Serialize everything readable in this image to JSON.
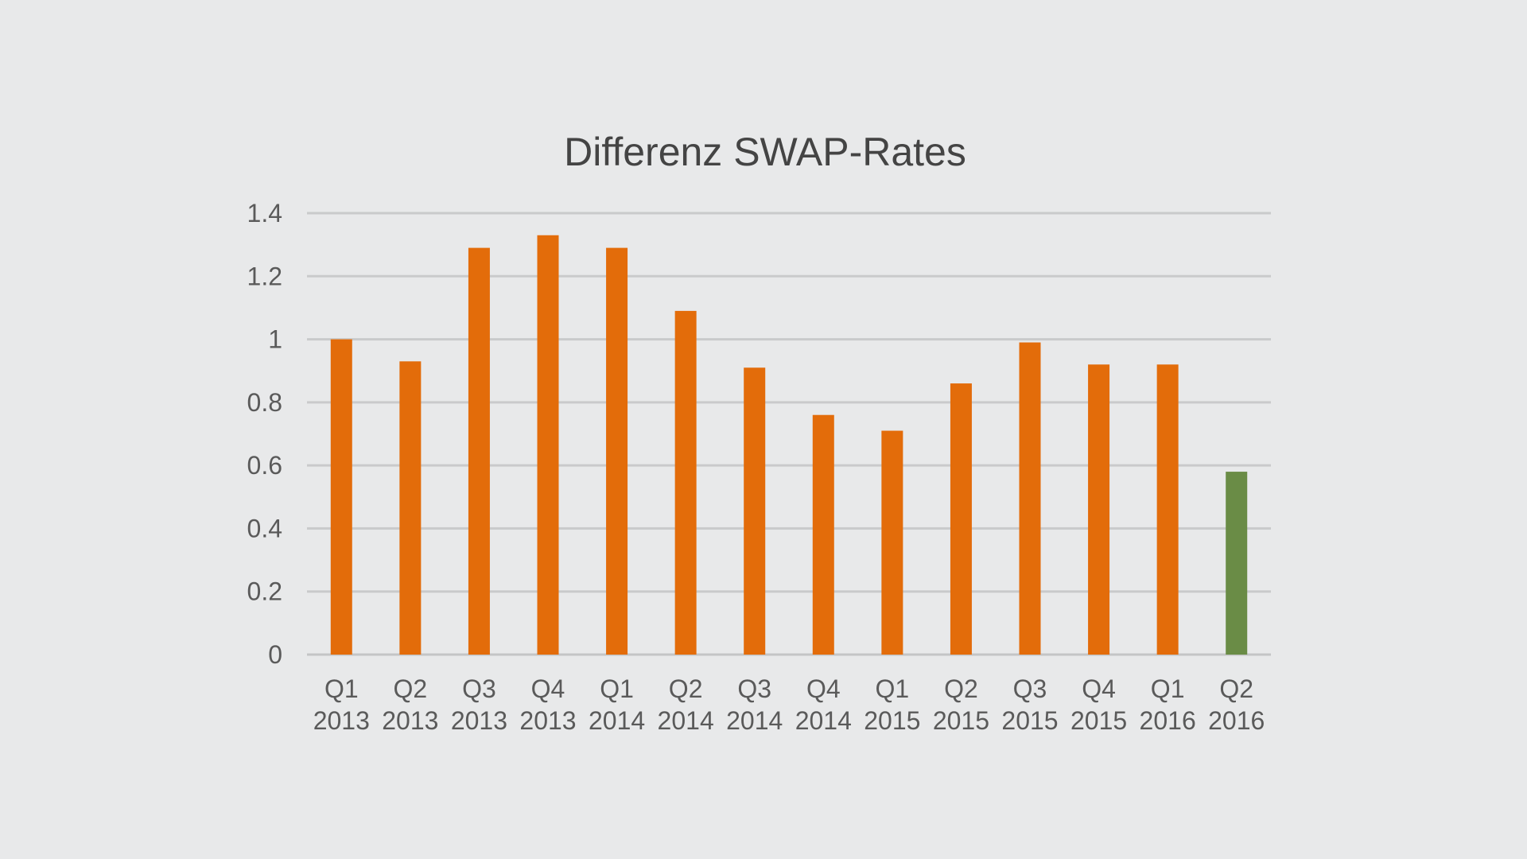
{
  "chart_data": {
    "type": "bar",
    "title": "Differenz SWAP-Rates",
    "xlabel": "",
    "ylabel": "",
    "ylim": [
      0,
      1.4
    ],
    "yticks": [
      "0",
      "0.2",
      "0.4",
      "0.6",
      "0.8",
      "1",
      "1.2",
      "1.4"
    ],
    "grid": true,
    "categories": [
      [
        "Q1",
        "2013"
      ],
      [
        "Q2",
        "2013"
      ],
      [
        "Q3",
        "2013"
      ],
      [
        "Q4",
        "2013"
      ],
      [
        "Q1",
        "2014"
      ],
      [
        "Q2",
        "2014"
      ],
      [
        "Q3",
        "2014"
      ],
      [
        "Q4",
        "2014"
      ],
      [
        "Q1",
        "2015"
      ],
      [
        "Q2",
        "2015"
      ],
      [
        "Q3",
        "2015"
      ],
      [
        "Q4",
        "2015"
      ],
      [
        "Q1",
        "2016"
      ],
      [
        "Q2",
        "2016"
      ]
    ],
    "values": [
      1.0,
      0.93,
      1.29,
      1.33,
      1.29,
      1.09,
      0.91,
      0.76,
      0.71,
      0.86,
      0.99,
      0.92,
      0.92,
      0.58
    ],
    "colors": {
      "bar": "#e36c0a",
      "highlight": "#6a8c46"
    },
    "highlight_index": 13
  }
}
